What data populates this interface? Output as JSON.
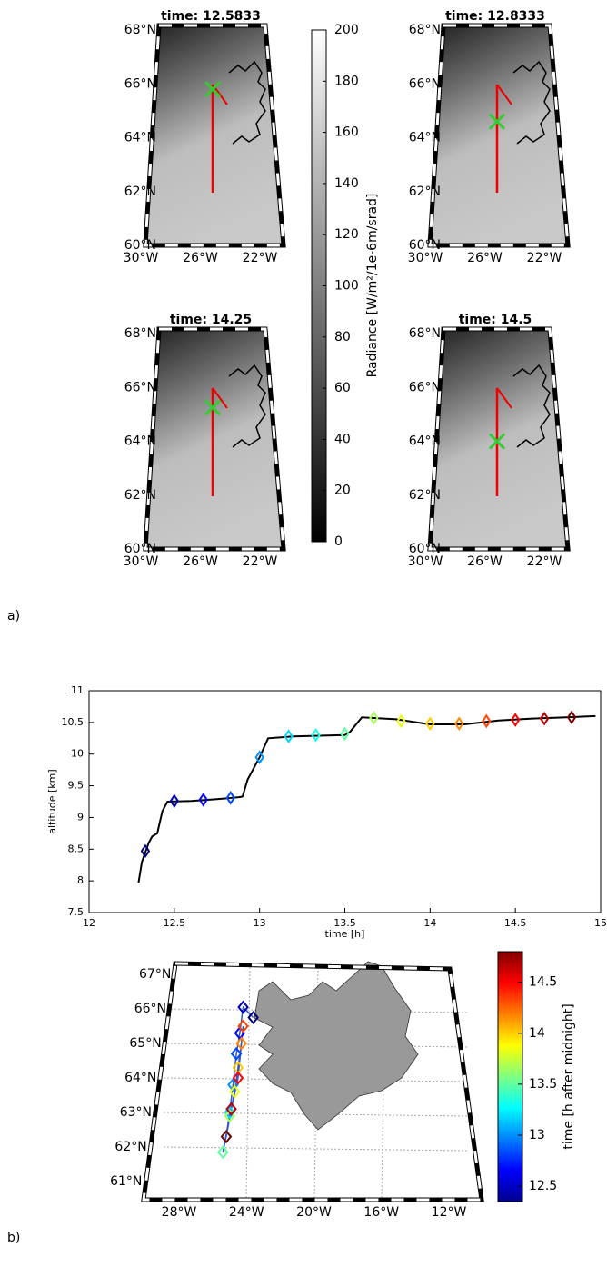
{
  "chart_data": [
    {
      "type": "map-panels",
      "panel_label": "a)",
      "lat_lim": [
        60,
        68
      ],
      "lon_lim": [
        -30,
        -22
      ],
      "lat_ticks": [
        {
          "value": 68,
          "label": "68°N"
        },
        {
          "value": 66,
          "label": "66°N"
        },
        {
          "value": 64,
          "label": "64°N"
        },
        {
          "value": 62,
          "label": "62°N"
        },
        {
          "value": 60,
          "label": "60°N"
        }
      ],
      "lon_ticks": [
        {
          "value": -30,
          "label": "30°W"
        },
        {
          "value": -26,
          "label": "26°W"
        },
        {
          "value": -22,
          "label": "22°W"
        }
      ],
      "panels": [
        {
          "title": "time: 12.5833",
          "marker_lat": 65.8
        },
        {
          "title": "time: 12.8333",
          "marker_lat": 64.6
        },
        {
          "title": "time: 14.25",
          "marker_lat": 65.25
        },
        {
          "title": "time: 14.5",
          "marker_lat": 64.0
        }
      ],
      "colorbar": {
        "label": "Radiance [W/m²/1e-6m/srad]",
        "ylim": [
          0,
          200
        ],
        "yticks": [
          0,
          20,
          40,
          60,
          80,
          100,
          120,
          140,
          160,
          180,
          200
        ]
      }
    },
    {
      "type": "line",
      "xlabel": "time [h]",
      "ylabel": "altitude [km]",
      "xlim": [
        12,
        15
      ],
      "ylim": [
        7.5,
        11
      ],
      "xticks": [
        12,
        12.5,
        13,
        13.5,
        14,
        14.5,
        15
      ],
      "yticks": [
        7.5,
        8,
        8.5,
        9,
        9.5,
        10,
        10.5,
        11
      ],
      "series": [
        {
          "color": "#000000",
          "x": [
            12.29,
            12.31,
            12.35,
            12.37,
            12.4,
            12.43,
            12.46,
            12.6,
            12.75,
            12.88,
            12.9,
            12.93,
            13.0,
            13.05,
            13.2,
            13.5,
            13.53,
            13.6,
            13.8,
            14.0,
            14.2,
            14.4,
            14.6,
            14.8,
            14.97
          ],
          "values": [
            7.97,
            8.3,
            8.6,
            8.7,
            8.75,
            9.1,
            9.25,
            9.26,
            9.29,
            9.32,
            9.33,
            9.6,
            9.95,
            10.25,
            10.28,
            10.3,
            10.35,
            10.58,
            10.55,
            10.47,
            10.47,
            10.53,
            10.56,
            10.58,
            10.6
          ]
        }
      ],
      "markers": {
        "x": [
          12.33,
          12.5,
          12.67,
          12.83,
          13.0,
          13.17,
          13.33,
          13.5,
          13.67,
          13.83,
          14.0,
          14.17,
          14.33,
          14.5,
          14.67,
          14.83
        ],
        "values": [
          8.47,
          9.26,
          9.28,
          9.31,
          9.95,
          10.28,
          10.3,
          10.32,
          10.57,
          10.52,
          10.48,
          10.48,
          10.52,
          10.54,
          10.56,
          10.58
        ]
      }
    },
    {
      "type": "map",
      "panel_label": "b)",
      "lat_lim": [
        61,
        67
      ],
      "lon_lim": [
        -28,
        -12
      ],
      "lat_ticks": [
        {
          "value": 67,
          "label": "67°N"
        },
        {
          "value": 66,
          "label": "66°N"
        },
        {
          "value": 65,
          "label": "65°N"
        },
        {
          "value": 64,
          "label": "64°N"
        },
        {
          "value": 63,
          "label": "63°N"
        },
        {
          "value": 62,
          "label": "62°N"
        },
        {
          "value": 61,
          "label": "61°N"
        }
      ],
      "lon_ticks": [
        {
          "value": -28,
          "label": "28°W"
        },
        {
          "value": -24,
          "label": "24°W"
        },
        {
          "value": -20,
          "label": "20°W"
        },
        {
          "value": -16,
          "label": "16°W"
        },
        {
          "value": -12,
          "label": "12°W"
        }
      ],
      "track": {
        "color": "#3355cc",
        "lon": [
          -23.6,
          -24.2,
          -24.4,
          -24.6,
          -24.8,
          -25.0,
          -25.2,
          -25.4,
          -25.0,
          -24.7,
          -24.5,
          -24.3,
          -24.2,
          -24.5,
          -24.9,
          -25.2
        ],
        "lat": [
          65.75,
          66.05,
          65.3,
          64.7,
          63.8,
          63.0,
          62.3,
          61.85,
          62.9,
          63.6,
          64.3,
          65.0,
          65.5,
          64.0,
          63.1,
          62.3
        ]
      },
      "colorbar": {
        "label": "time [h after midnight]",
        "clim": [
          12.35,
          14.8
        ],
        "yticks": [
          12.5,
          13,
          13.5,
          14,
          14.5
        ],
        "colormap": "jet"
      }
    }
  ]
}
